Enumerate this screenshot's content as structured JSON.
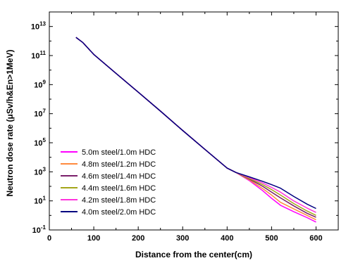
{
  "chart_data": {
    "type": "line",
    "xlabel": "Distance from the center(cm)",
    "ylabel": "Neutron dose rate (μSv/h&En>1MeV)",
    "xlim": [
      0,
      650
    ],
    "ylim": [
      0.1,
      100000000000000
    ],
    "yscale": "log",
    "x_ticks": [
      0,
      100,
      200,
      300,
      400,
      500,
      600
    ],
    "y_tick_exponents": [
      -1,
      1,
      3,
      5,
      7,
      9,
      11,
      13
    ],
    "y_tick_base": "10",
    "legend_position": "lower-left",
    "grid": false,
    "series": [
      {
        "name": "5.0m steel/1.0m HDC",
        "color": "#ff00ff",
        "x": [
          60,
          75,
          100,
          150,
          200,
          250,
          300,
          350,
          400,
          420,
          450,
          480,
          500,
          520,
          550,
          580,
          600
        ],
        "y": [
          1800000000000.0,
          800000000000.0,
          120000000000.0,
          6000000000.0,
          300000000.0,
          15000000.0,
          700000.0,
          35000.0,
          1800.0,
          900.0,
          250.0,
          50,
          15,
          5,
          1.8,
          0.7,
          0.35
        ]
      },
      {
        "name": "4.8m steel/1.2m HDC",
        "color": "#ff8a3d",
        "x": [
          60,
          75,
          100,
          150,
          200,
          250,
          300,
          350,
          400,
          420,
          450,
          480,
          500,
          520,
          550,
          580,
          600
        ],
        "y": [
          1800000000000.0,
          800000000000.0,
          120000000000.0,
          6000000000.0,
          300000000.0,
          15000000.0,
          700000.0,
          35000.0,
          1800.0,
          900.0,
          280.0,
          70,
          25,
          8,
          2.8,
          1.0,
          0.5
        ]
      },
      {
        "name": "4.6m steel/1.4m HDC",
        "color": "#7a1f6a",
        "x": [
          60,
          75,
          100,
          150,
          200,
          250,
          300,
          350,
          400,
          420,
          450,
          480,
          500,
          520,
          550,
          580,
          600
        ],
        "y": [
          1800000000000.0,
          800000000000.0,
          120000000000.0,
          6000000000.0,
          300000000.0,
          15000000.0,
          700000.0,
          35000.0,
          1800.0,
          900.0,
          320.0,
          100,
          40,
          16,
          4.5,
          1.4,
          0.75
        ]
      },
      {
        "name": "4.4m steel/1.6m HDC",
        "color": "#a4a61a",
        "x": [
          60,
          75,
          100,
          150,
          200,
          250,
          300,
          350,
          400,
          420,
          450,
          480,
          500,
          520,
          550,
          580,
          600
        ],
        "y": [
          1800000000000.0,
          800000000000.0,
          120000000000.0,
          6000000000.0,
          300000000.0,
          15000000.0,
          700000.0,
          35000.0,
          1800.0,
          900.0,
          350.0,
          130,
          60,
          25,
          6.5,
          2.0,
          1.0
        ]
      },
      {
        "name": "4.2m steel/1.8m HDC",
        "color": "#ff33dd",
        "x": [
          60,
          75,
          100,
          150,
          200,
          250,
          300,
          350,
          400,
          420,
          450,
          480,
          500,
          520,
          550,
          580,
          600
        ],
        "y": [
          1800000000000.0,
          800000000000.0,
          120000000000.0,
          6000000000.0,
          300000000.0,
          15000000.0,
          700000.0,
          35000.0,
          1800.0,
          900.0,
          400.0,
          170,
          85,
          40,
          10,
          3.2,
          1.6
        ]
      },
      {
        "name": "4.0m steel/2.0m HDC",
        "color": "#000080",
        "x": [
          60,
          75,
          100,
          150,
          200,
          250,
          300,
          350,
          400,
          420,
          450,
          480,
          500,
          520,
          550,
          580,
          600
        ],
        "y": [
          1800000000000.0,
          800000000000.0,
          120000000000.0,
          6000000000.0,
          300000000.0,
          15000000.0,
          700000.0,
          35000.0,
          1800.0,
          900.0,
          450.0,
          220,
          130,
          75,
          20,
          6,
          3
        ]
      }
    ]
  }
}
